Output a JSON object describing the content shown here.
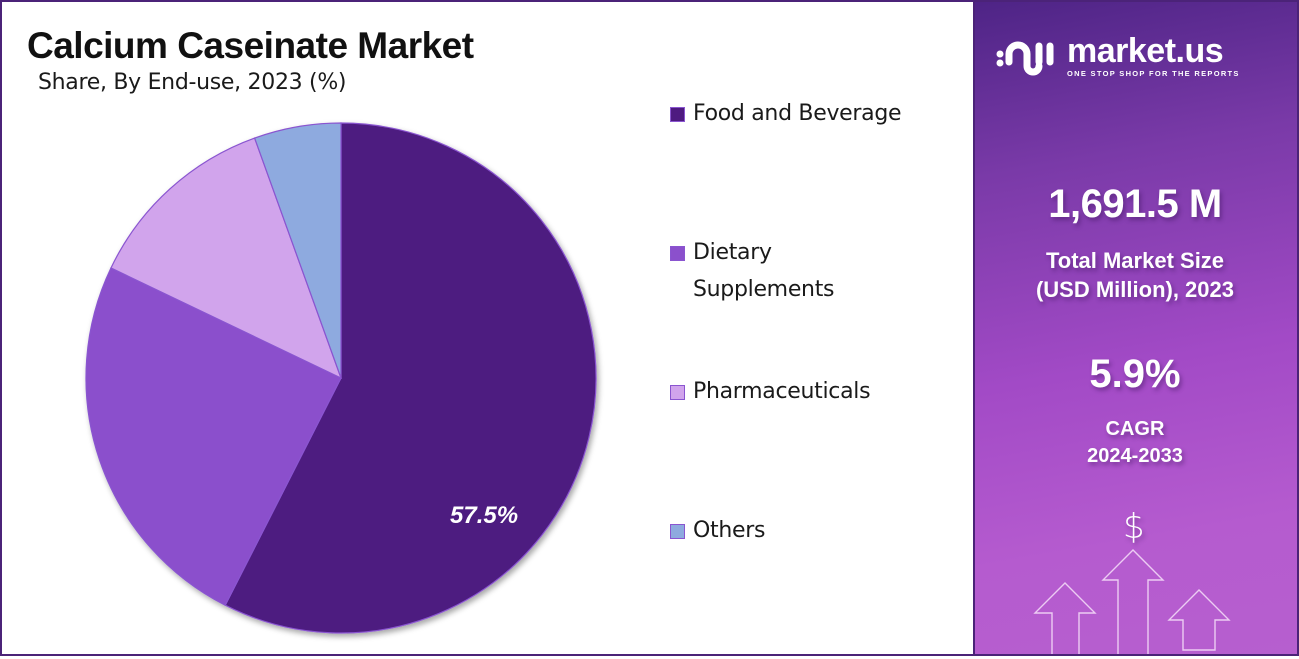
{
  "header": {
    "title": "Calcium Caseinate Market",
    "subtitle": "Share, By End-use, 2023 (%)"
  },
  "chart_data": {
    "type": "pie",
    "title": "Calcium Caseinate Market",
    "subtitle": "Share, By End-use, 2023 (%)",
    "categories": [
      "Food and Beverage",
      "Dietary Supplements",
      "Pharmaceuticals",
      "Others"
    ],
    "values": [
      57.5,
      24.6,
      12.4,
      5.5
    ],
    "colors": [
      "#4e1a80",
      "#8b50cc",
      "#d1a4ec",
      "#8eaadf"
    ],
    "data_labels": [
      {
        "category": "Food and Beverage",
        "text": "57.5%"
      }
    ],
    "start_angle": "12 o'clock, clockwise",
    "legend_position": "right"
  },
  "pie": {
    "label": "57.5%"
  },
  "legend": {
    "items": [
      {
        "label": "Food and Beverage",
        "color": "#4e1a80"
      },
      {
        "label": "Dietary Supplements",
        "line1": "Dietary",
        "line2": "Supplements",
        "color": "#8b50cc"
      },
      {
        "label": "Pharmaceuticals",
        "color": "#d1a4ec"
      },
      {
        "label": "Others",
        "color": "#8eaadf"
      }
    ]
  },
  "sidebar": {
    "brand": {
      "name": "market.us",
      "tagline": "ONE STOP SHOP FOR THE REPORTS",
      "icon": "market-us-logo-icon"
    },
    "market_size": {
      "value": "1,691.5 M",
      "caption_line1": "Total Market Size",
      "caption_line2": "(USD Million), 2023"
    },
    "cagr": {
      "value": "5.9%",
      "caption_line1": "CAGR",
      "caption_line2": "2024-2033"
    },
    "decoration": {
      "dollar_symbol": "$",
      "icon": "growth-arrows-icon"
    }
  },
  "colors": {
    "border": "#4b2378",
    "panel_top": "#4e2486",
    "panel_bottom": "#b65fcf"
  }
}
